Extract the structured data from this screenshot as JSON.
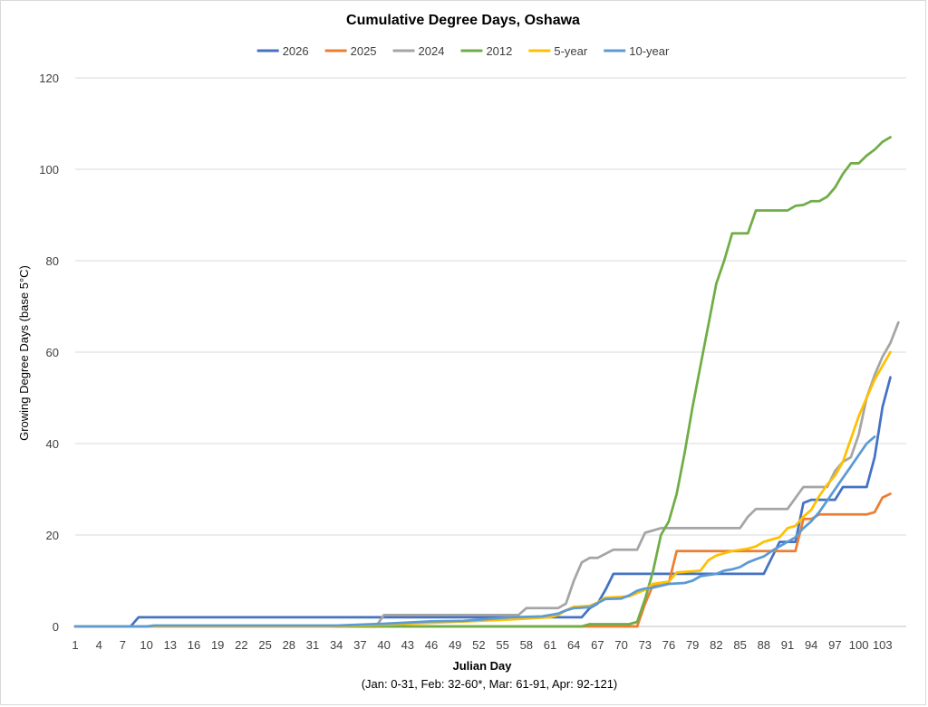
{
  "chart_data": {
    "type": "line",
    "title": "Cumulative Degree Days, Oshawa",
    "xlabel": "Julian Day",
    "xlabel_note": "(Jan: 0-31, Feb: 32-60*, Mar: 61-91, Apr: 92-121)",
    "ylabel": "Growing Degree Days (base 5°C)",
    "xlim": [
      1,
      106
    ],
    "ylim": [
      0,
      120
    ],
    "yticks": [
      0,
      20,
      40,
      60,
      80,
      100,
      120
    ],
    "xticks": [
      1,
      4,
      7,
      10,
      13,
      16,
      19,
      22,
      25,
      28,
      31,
      34,
      37,
      40,
      43,
      46,
      49,
      52,
      55,
      58,
      61,
      64,
      67,
      70,
      73,
      76,
      79,
      82,
      85,
      88,
      91,
      94,
      97,
      100,
      103
    ],
    "grid": "horizontal",
    "legend_position": "top",
    "series": [
      {
        "name": "2026",
        "color": "#4472c4",
        "points": [
          [
            1,
            0
          ],
          [
            8,
            0
          ],
          [
            9,
            2
          ],
          [
            63,
            2
          ],
          [
            65,
            2
          ],
          [
            66,
            4
          ],
          [
            67,
            5
          ],
          [
            68,
            8
          ],
          [
            69,
            11.5
          ],
          [
            77,
            11.5
          ],
          [
            88,
            11.5
          ],
          [
            89,
            15
          ],
          [
            90,
            18.5
          ],
          [
            92,
            18.5
          ],
          [
            93,
            27
          ],
          [
            94,
            27.7
          ],
          [
            97,
            27.7
          ],
          [
            98,
            30.5
          ],
          [
            101,
            30.5
          ],
          [
            102,
            37
          ],
          [
            103,
            48
          ],
          [
            104,
            54.5
          ]
        ]
      },
      {
        "name": "2025",
        "color": "#ed7d31",
        "points": [
          [
            1,
            0
          ],
          [
            72,
            0
          ],
          [
            73,
            5
          ],
          [
            74,
            9
          ],
          [
            75,
            9.5
          ],
          [
            76,
            9.5
          ],
          [
            77,
            16.5
          ],
          [
            92,
            16.5
          ],
          [
            93,
            23.5
          ],
          [
            94,
            23.5
          ],
          [
            95,
            24.5
          ],
          [
            101,
            24.5
          ],
          [
            102,
            25
          ],
          [
            103,
            28.2
          ],
          [
            104,
            29
          ]
        ]
      },
      {
        "name": "2024",
        "color": "#a5a5a5",
        "points": [
          [
            1,
            0
          ],
          [
            39,
            0
          ],
          [
            40,
            2.5
          ],
          [
            57,
            2.5
          ],
          [
            58,
            4
          ],
          [
            62,
            4
          ],
          [
            63,
            5
          ],
          [
            64,
            10
          ],
          [
            65,
            14
          ],
          [
            66,
            15
          ],
          [
            67,
            15
          ],
          [
            69,
            16.8
          ],
          [
            72,
            16.8
          ],
          [
            73,
            20.5
          ],
          [
            75,
            21.5
          ],
          [
            85,
            21.5
          ],
          [
            86,
            24
          ],
          [
            87,
            25.7
          ],
          [
            91,
            25.7
          ],
          [
            93,
            30.5
          ],
          [
            96,
            30.5
          ],
          [
            97,
            34
          ],
          [
            98,
            36
          ],
          [
            99,
            37
          ],
          [
            100,
            42
          ],
          [
            101,
            50
          ],
          [
            102,
            55
          ],
          [
            103,
            59
          ],
          [
            104,
            62
          ],
          [
            105,
            66.5
          ]
        ]
      },
      {
        "name": "2012",
        "color": "#70ad47",
        "points": [
          [
            1,
            0
          ],
          [
            65,
            0
          ],
          [
            66,
            0.5
          ],
          [
            71,
            0.5
          ],
          [
            72,
            1
          ],
          [
            73,
            6
          ],
          [
            74,
            12
          ],
          [
            75,
            20
          ],
          [
            76,
            23
          ],
          [
            77,
            29
          ],
          [
            78,
            38
          ],
          [
            79,
            48
          ],
          [
            80,
            57
          ],
          [
            81,
            66
          ],
          [
            82,
            75
          ],
          [
            83,
            80
          ],
          [
            84,
            86
          ],
          [
            86,
            86
          ],
          [
            87,
            91
          ],
          [
            91,
            91
          ],
          [
            92,
            92
          ],
          [
            93,
            92.2
          ],
          [
            94,
            93
          ],
          [
            95,
            93
          ],
          [
            96,
            94
          ],
          [
            97,
            96
          ],
          [
            98,
            99
          ],
          [
            99,
            101.3
          ],
          [
            100,
            101.3
          ],
          [
            101,
            103
          ],
          [
            102,
            104.3
          ],
          [
            103,
            106
          ],
          [
            104,
            107
          ]
        ]
      },
      {
        "name": "5-year",
        "color": "#ffc000",
        "points": [
          [
            1,
            0
          ],
          [
            33,
            0
          ],
          [
            40,
            0.4
          ],
          [
            46,
            0.8
          ],
          [
            52,
            1.2
          ],
          [
            57,
            1.6
          ],
          [
            61,
            2
          ],
          [
            62,
            2.5
          ],
          [
            63,
            3.5
          ],
          [
            64,
            4.3
          ],
          [
            66,
            4.5
          ],
          [
            67,
            5.2
          ],
          [
            68,
            6.3
          ],
          [
            71,
            6.6
          ],
          [
            72,
            7.3
          ],
          [
            73,
            8
          ],
          [
            74,
            9.3
          ],
          [
            76,
            9.8
          ],
          [
            77,
            11.8
          ],
          [
            80,
            12.2
          ],
          [
            81,
            14.5
          ],
          [
            82,
            15.5
          ],
          [
            83,
            16
          ],
          [
            84,
            16.5
          ],
          [
            86,
            17
          ],
          [
            87,
            17.5
          ],
          [
            88,
            18.5
          ],
          [
            89,
            19
          ],
          [
            90,
            19.5
          ],
          [
            91,
            21.5
          ],
          [
            92,
            22
          ],
          [
            93,
            24
          ],
          [
            94,
            25.5
          ],
          [
            95,
            28.5
          ],
          [
            96,
            31
          ],
          [
            97,
            33
          ],
          [
            98,
            36
          ],
          [
            99,
            41
          ],
          [
            100,
            46
          ],
          [
            101,
            50
          ],
          [
            102,
            54
          ],
          [
            103,
            57
          ],
          [
            104,
            60
          ]
        ]
      },
      {
        "name": "10-year",
        "color": "#5b9bd5",
        "points": [
          [
            1,
            0
          ],
          [
            10,
            0
          ],
          [
            11,
            0.2
          ],
          [
            34,
            0.2
          ],
          [
            40,
            0.6
          ],
          [
            46,
            1.1
          ],
          [
            50,
            1.2
          ],
          [
            56,
            2
          ],
          [
            60,
            2.2
          ],
          [
            62,
            2.8
          ],
          [
            63,
            3.5
          ],
          [
            64,
            4
          ],
          [
            66,
            4.2
          ],
          [
            68,
            6
          ],
          [
            70,
            6.1
          ],
          [
            71,
            6.8
          ],
          [
            72,
            7.8
          ],
          [
            73,
            8.3
          ],
          [
            74,
            8.5
          ],
          [
            76,
            9.3
          ],
          [
            78,
            9.5
          ],
          [
            79,
            10
          ],
          [
            80,
            11
          ],
          [
            82,
            11.5
          ],
          [
            83,
            12.2
          ],
          [
            84,
            12.5
          ],
          [
            85,
            13
          ],
          [
            86,
            14
          ],
          [
            87,
            14.7
          ],
          [
            88,
            15.3
          ],
          [
            89,
            16.5
          ],
          [
            90,
            17.5
          ],
          [
            91,
            18.5
          ],
          [
            92,
            19.5
          ],
          [
            93,
            21.5
          ],
          [
            94,
            23
          ],
          [
            95,
            25
          ],
          [
            96,
            27.5
          ],
          [
            97,
            30
          ],
          [
            98,
            32.5
          ],
          [
            99,
            35
          ],
          [
            100,
            37.5
          ],
          [
            101,
            40
          ],
          [
            102,
            41.5
          ]
        ]
      }
    ]
  }
}
